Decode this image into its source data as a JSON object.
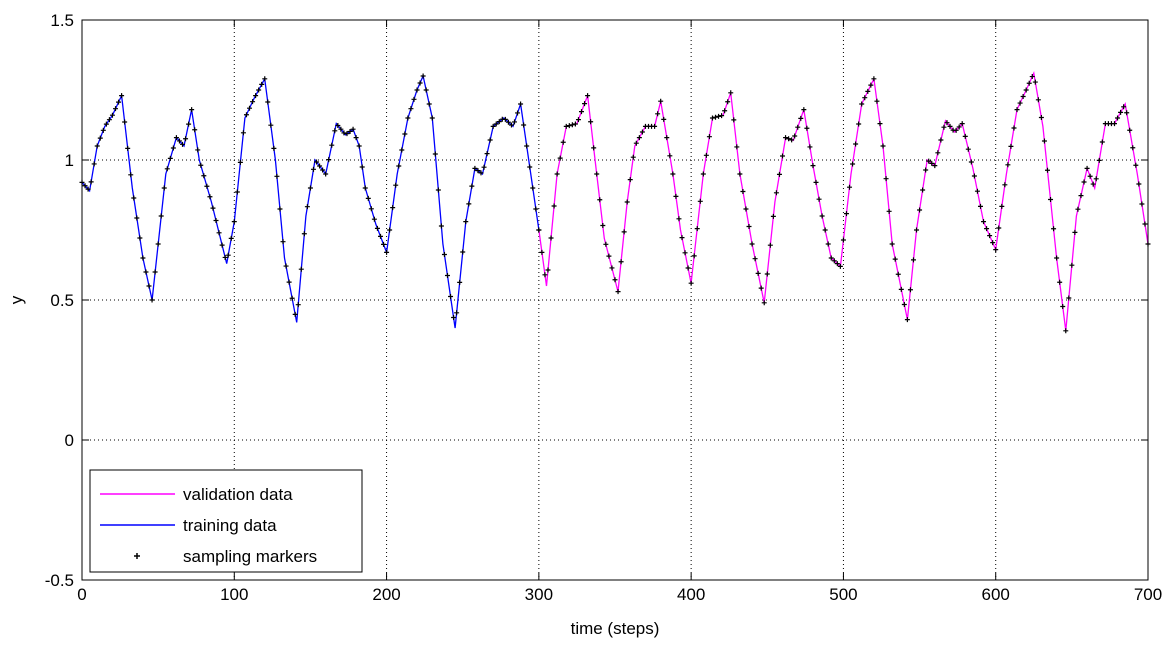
{
  "chart_data": {
    "type": "line",
    "title": "",
    "xlabel": "time (steps)",
    "ylabel": "y",
    "xlim": [
      0,
      700
    ],
    "ylim": [
      -0.5,
      1.5
    ],
    "xticks": [
      "0",
      "100",
      "200",
      "300",
      "400",
      "500",
      "600",
      "700"
    ],
    "yticks": [
      "-0.5",
      "0",
      "0.5",
      "1",
      "1.5"
    ],
    "grid": true,
    "legend_position": "bottom-left",
    "legend": [
      {
        "label": "validation data",
        "color": "#ff00ff",
        "style": "line"
      },
      {
        "label": "training data",
        "color": "#0000ff",
        "style": "line"
      },
      {
        "label": "sampling markers",
        "color": "#000000",
        "style": "marker"
      }
    ],
    "series": [
      {
        "name": "training data",
        "color": "#0000ff",
        "x": [
          0,
          5,
          10,
          15,
          20,
          26,
          33,
          40,
          46,
          55,
          62,
          67,
          72,
          77,
          85,
          95,
          100,
          107,
          113,
          120,
          127,
          133,
          141,
          147,
          153,
          160,
          167,
          173,
          178,
          182,
          186,
          193,
          200,
          207,
          214,
          220,
          224,
          230,
          237,
          245,
          252,
          258,
          263,
          270,
          277,
          283,
          288,
          300
        ],
        "y": [
          0.92,
          0.89,
          1.05,
          1.12,
          1.16,
          1.23,
          0.9,
          0.65,
          0.5,
          0.95,
          1.08,
          1.05,
          1.18,
          1.0,
          0.85,
          0.63,
          0.78,
          1.15,
          1.22,
          1.29,
          1.0,
          0.65,
          0.42,
          0.8,
          1.0,
          0.95,
          1.13,
          1.09,
          1.11,
          1.05,
          0.9,
          0.77,
          0.67,
          0.95,
          1.15,
          1.25,
          1.3,
          1.15,
          0.7,
          0.4,
          0.78,
          0.97,
          0.95,
          1.12,
          1.15,
          1.12,
          1.2,
          0.75
        ]
      },
      {
        "name": "validation data",
        "color": "#ff00ff",
        "x": [
          300,
          305,
          312,
          318,
          325,
          332,
          338,
          343,
          352,
          358,
          363,
          370,
          376,
          380,
          388,
          393,
          400,
          408,
          414,
          421,
          426,
          432,
          440,
          448,
          455,
          462,
          467,
          474,
          480,
          486,
          492,
          498,
          505,
          512,
          520,
          526,
          532,
          542,
          548,
          555,
          560,
          567,
          573,
          578,
          585,
          592,
          600,
          607,
          614,
          620,
          625,
          631,
          640,
          646,
          653,
          660,
          665,
          672,
          678,
          685,
          693,
          700
        ],
        "y": [
          0.75,
          0.55,
          0.95,
          1.12,
          1.13,
          1.23,
          0.95,
          0.72,
          0.53,
          0.85,
          1.05,
          1.12,
          1.12,
          1.21,
          0.95,
          0.75,
          0.56,
          0.95,
          1.15,
          1.16,
          1.24,
          0.95,
          0.7,
          0.49,
          0.85,
          1.08,
          1.07,
          1.18,
          0.98,
          0.8,
          0.65,
          0.62,
          0.95,
          1.2,
          1.29,
          1.05,
          0.7,
          0.43,
          0.75,
          1.0,
          0.98,
          1.14,
          1.1,
          1.13,
          0.97,
          0.78,
          0.68,
          0.95,
          1.18,
          1.25,
          1.31,
          1.12,
          0.65,
          0.39,
          0.8,
          0.97,
          0.9,
          1.13,
          1.13,
          1.2,
          0.95,
          0.7
        ]
      }
    ]
  }
}
